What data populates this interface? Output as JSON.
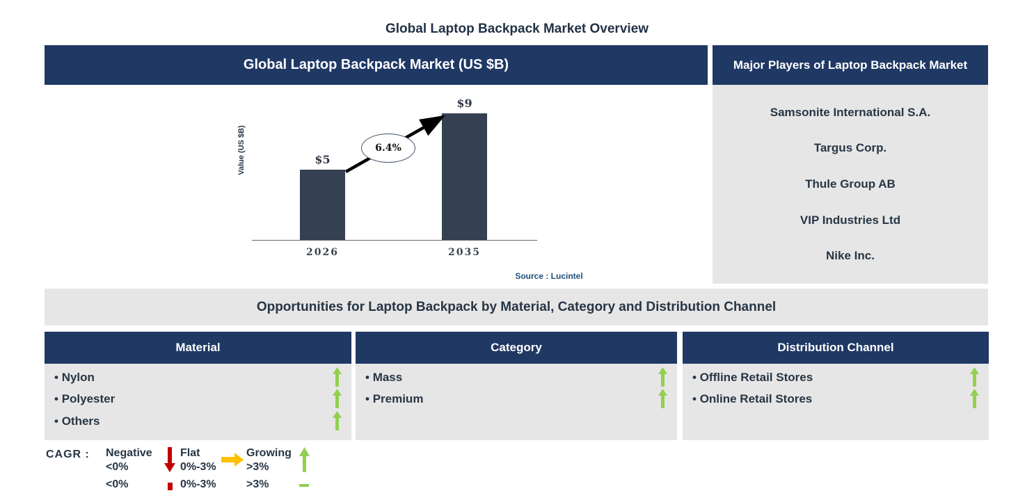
{
  "page_title": "Global Laptop Backpack Market Overview",
  "market_panel": {
    "header": "Global Laptop Backpack Market (US $B)",
    "source": "Source : Lucintel"
  },
  "chart_data": {
    "type": "bar",
    "categories": [
      "2026",
      "2035"
    ],
    "values": [
      5,
      9
    ],
    "value_labels": [
      "$5",
      "$9"
    ],
    "title": "Global Laptop Backpack Market (US $B)",
    "xlabel": "",
    "ylabel": "Value (US $B)",
    "ylim": [
      0,
      9
    ],
    "growth_annotation": "6.4%",
    "bar_color": "#364053",
    "grid": false,
    "legend": false
  },
  "major_players": {
    "header": "Major Players of Laptop Backpack Market",
    "companies": [
      "Samsonite International S.A.",
      "Targus Corp.",
      "Thule Group AB",
      "VIP Industries Ltd",
      "Nike Inc."
    ]
  },
  "opportunities": {
    "title": "Opportunities for Laptop Backpack by Material, Category and Distribution Channel",
    "columns": [
      {
        "header": "Material",
        "items": [
          "Nylon",
          "Polyester",
          "Others"
        ]
      },
      {
        "header": "Category",
        "items": [
          "Mass",
          "Premium"
        ]
      },
      {
        "header": "Distribution Channel",
        "items": [
          "Offline Retail Stores",
          "Online Retail Stores"
        ]
      }
    ]
  },
  "cagr_legend": {
    "label": "CAGR :",
    "entries": [
      {
        "name": "Negative",
        "range": "<0%",
        "direction": "down",
        "color": "#C00000"
      },
      {
        "name": "Flat",
        "range": "0%-3%",
        "direction": "right",
        "color": "#FFC000"
      },
      {
        "name": "Growing",
        "range": ">3%",
        "direction": "up",
        "color": "#92D050"
      }
    ],
    "clipped_repeat_ranges": [
      "<0%",
      "0%-3%",
      ">3%"
    ]
  },
  "colors": {
    "header_navy": "#1F3864",
    "panel_gray": "#E7E6E6",
    "bar": "#364053",
    "text_dark": "#263645",
    "growing_green": "#92D050",
    "negative_red": "#C00000",
    "flat_orange": "#FFC000",
    "source_blue": "#1F4E79"
  }
}
